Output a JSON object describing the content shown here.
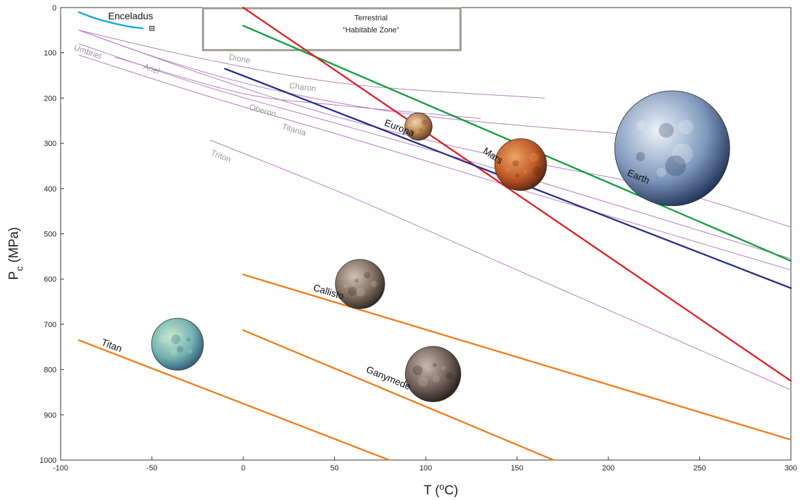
{
  "chart_data": {
    "type": "line",
    "xlabel": "T (",
    "xlabel_sup": "o",
    "xlabel_end": "C)",
    "ylabel": "P",
    "ylabel_sub": "c",
    "ylabel_end": " (MPa)",
    "xlim": [
      -100,
      300
    ],
    "ylim": [
      0,
      1000
    ],
    "y_inverted": true,
    "xticks": [
      "-100",
      "-50",
      "0",
      "50",
      "100",
      "150",
      "200",
      "250",
      "300"
    ],
    "yticks": [
      "0",
      "100",
      "200",
      "300",
      "400",
      "500",
      "600",
      "700",
      "800",
      "900",
      "1000"
    ],
    "habitable_zone": {
      "label_line1": "Terrestrial",
      "label_line2": "“Habitable Zone”",
      "x": [
        -22,
        119
      ],
      "y": [
        0,
        94
      ],
      "color": "#a09a92"
    },
    "series": [
      {
        "name": "Enceladus",
        "color": "#1aa3e0",
        "kind": "major",
        "label_x": -74,
        "label_y": 26,
        "points": [
          [
            -90,
            10
          ],
          [
            -80,
            25
          ],
          [
            -65,
            40
          ],
          [
            -55,
            46
          ]
        ]
      },
      {
        "name": "Earth",
        "color": "#149e3e",
        "kind": "major",
        "label_x": 210,
        "label_y": 370,
        "points": [
          [
            0,
            40
          ],
          [
            300,
            560
          ]
        ]
      },
      {
        "name": "Mars",
        "color": "#dd2027",
        "kind": "major",
        "label_x": 131,
        "label_y": 320,
        "points": [
          [
            0,
            0
          ],
          [
            300,
            825
          ]
        ]
      },
      {
        "name": "Europa",
        "color": "#2a2f86",
        "kind": "major",
        "label_x": 77,
        "label_y": 260,
        "points": [
          [
            -10,
            135
          ],
          [
            300,
            620
          ]
        ]
      },
      {
        "name": "Callisto",
        "color": "#f07d1c",
        "kind": "major",
        "label_x": 38,
        "label_y": 625,
        "points": [
          [
            0,
            590
          ],
          [
            300,
            955
          ]
        ]
      },
      {
        "name": "Ganymede",
        "color": "#f07d1c",
        "kind": "major",
        "label_x": 67,
        "label_y": 805,
        "points": [
          [
            0,
            713
          ],
          [
            170,
            1000
          ]
        ]
      },
      {
        "name": "Titan",
        "color": "#f07d1c",
        "kind": "major",
        "label_x": -78,
        "label_y": 745,
        "points": [
          [
            -90,
            735
          ],
          [
            80,
            1000
          ]
        ]
      },
      {
        "name": "Dione",
        "color": "#b57cc0",
        "kind": "minor",
        "label_x": -8,
        "label_y": 115,
        "points": [
          [
            -90,
            50
          ],
          [
            -20,
            115
          ],
          [
            60,
            170
          ],
          [
            165,
            200
          ]
        ]
      },
      {
        "name": "Charon",
        "color": "#b57cc0",
        "kind": "minor",
        "label_x": 25,
        "label_y": 178,
        "points": [
          [
            -70,
            110
          ],
          [
            0,
            190
          ],
          [
            50,
            215
          ],
          [
            130,
            245
          ]
        ]
      },
      {
        "name": "Umbriel",
        "color": "#b57cc0",
        "kind": "minor",
        "label_x": -93,
        "label_y": 93,
        "points": [
          [
            -90,
            50
          ],
          [
            -40,
            120
          ],
          [
            20,
            185
          ],
          [
            100,
            240
          ],
          [
            210,
            280
          ]
        ]
      },
      {
        "name": "Ariel",
        "color": "#b57cc0",
        "kind": "minor",
        "label_x": -55,
        "label_y": 135,
        "points": [
          [
            -90,
            50
          ],
          [
            -20,
            150
          ],
          [
            50,
            240
          ],
          [
            130,
            320
          ],
          [
            230,
            400
          ],
          [
            300,
            485
          ]
        ]
      },
      {
        "name": "Oberon",
        "color": "#b57cc0",
        "kind": "minor",
        "label_x": 3,
        "label_y": 225,
        "points": [
          [
            -90,
            80
          ],
          [
            -20,
            175
          ],
          [
            50,
            255
          ],
          [
            150,
            370
          ],
          [
            300,
            555
          ]
        ]
      },
      {
        "name": "Titania",
        "color": "#b57cc0",
        "kind": "minor",
        "label_x": 21,
        "label_y": 268,
        "points": [
          [
            -90,
            105
          ],
          [
            -20,
            195
          ],
          [
            60,
            290
          ],
          [
            150,
            400
          ],
          [
            300,
            580
          ]
        ]
      },
      {
        "name": "Triton",
        "color": "#b57cc0",
        "kind": "minor",
        "label_x": -18,
        "label_y": 325,
        "points": [
          [
            -18,
            293
          ],
          [
            60,
            420
          ],
          [
            150,
            580
          ],
          [
            300,
            845
          ]
        ]
      }
    ],
    "bodies": [
      {
        "name": "Europa-globe",
        "icon": "europa-globe-icon",
        "cx": 96,
        "cy": 263,
        "r_val": 7.5,
        "palette": [
          "#f0d6a6",
          "#b0784a",
          "#5e3a22"
        ]
      },
      {
        "name": "Mars-globe",
        "icon": "mars-globe-icon",
        "cx": 152,
        "cy": 347,
        "r_val": 14.2,
        "palette": [
          "#f0a265",
          "#bc5a28",
          "#5a2210"
        ]
      },
      {
        "name": "Earth-globe",
        "icon": "earth-globe-icon",
        "cx": 235,
        "cy": 311,
        "r_val": 31.5,
        "palette": [
          "#eef3fb",
          "#7f98bb",
          "#1d2f54"
        ]
      },
      {
        "name": "Callisto-globe",
        "icon": "callisto-globe-icon",
        "cx": 64,
        "cy": 611,
        "r_val": 13.5,
        "palette": [
          "#cfc2b4",
          "#7e6c5e",
          "#2d241d"
        ]
      },
      {
        "name": "Ganymede-globe",
        "icon": "ganymede-globe-icon",
        "cx": 104,
        "cy": 810,
        "r_val": 15.2,
        "palette": [
          "#c6bab0",
          "#6d5e56",
          "#251d1a"
        ]
      },
      {
        "name": "Titan-globe",
        "icon": "titan-globe-icon",
        "cx": -36,
        "cy": 744,
        "r_val": 14.2,
        "palette": [
          "#c6e8d0",
          "#74b2b0",
          "#2e5878"
        ]
      }
    ]
  }
}
